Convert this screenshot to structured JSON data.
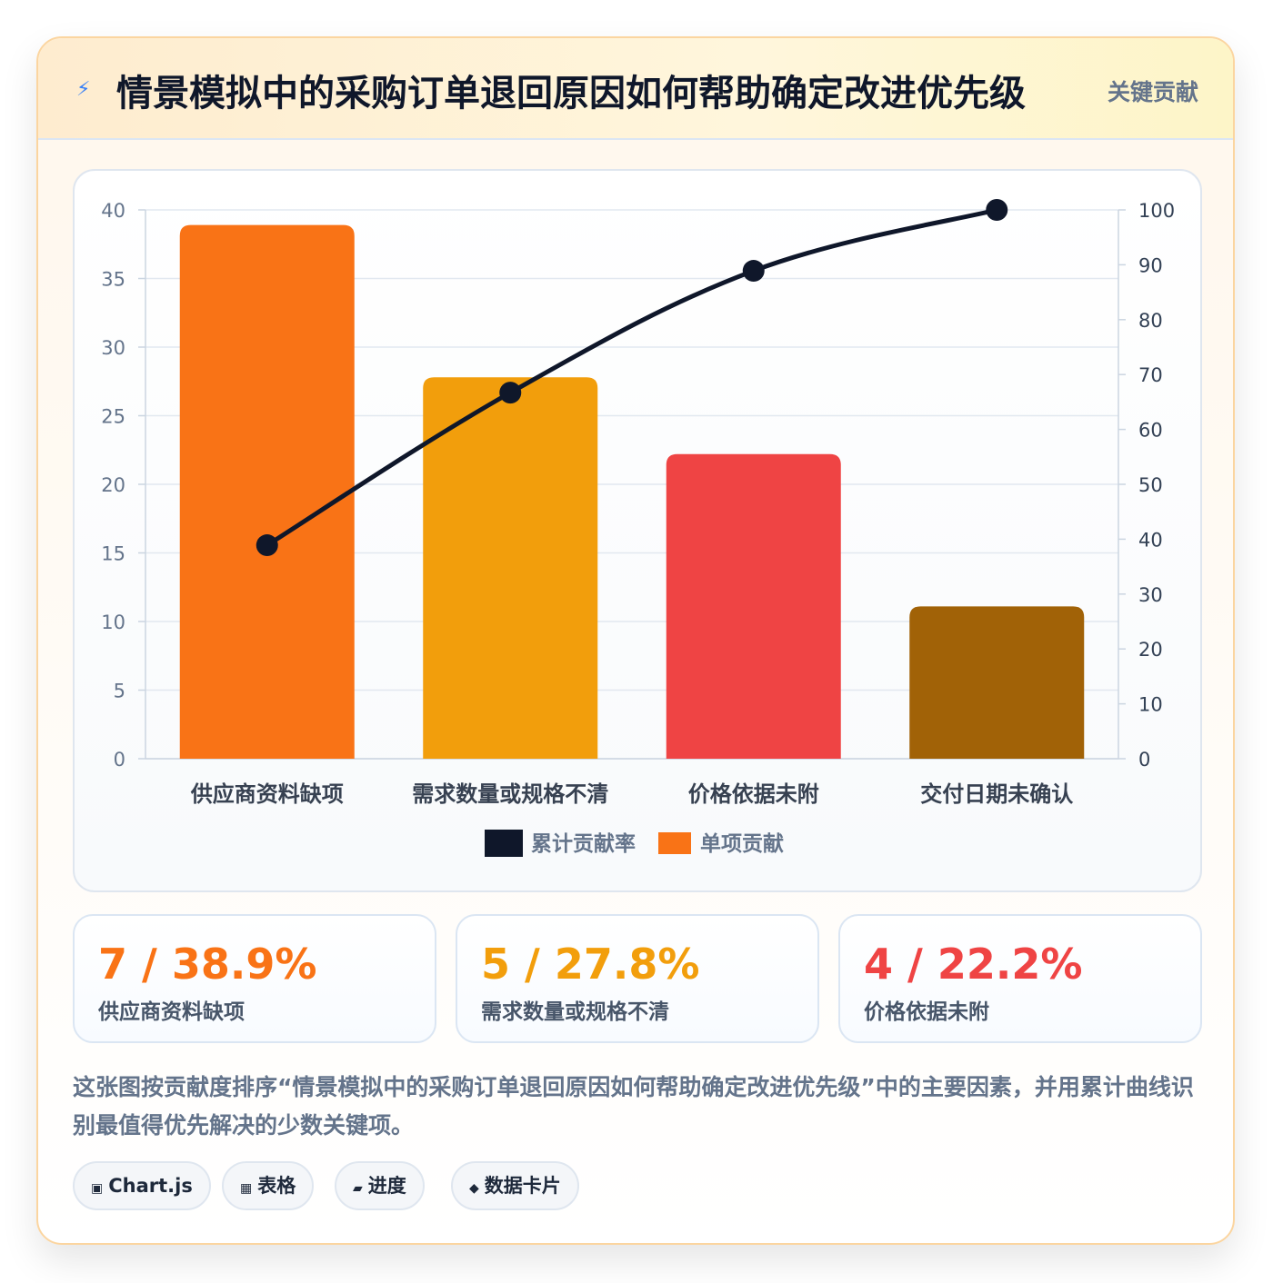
{
  "header": {
    "title": "情景模拟中的采购订单退回原因如何帮助确定改进优先级",
    "badge": "关键贡献",
    "icon": "lightning-icon"
  },
  "chart_data": {
    "type": "bar",
    "categories": [
      "供应商资料缺项",
      "需求数量或规格不清",
      "价格依据未附",
      "交付日期未确认"
    ],
    "series": [
      {
        "name": "单项贡献",
        "kind": "bar",
        "axis": "left",
        "values": [
          38.9,
          27.8,
          22.2,
          11.1
        ],
        "colors": [
          "#f97316",
          "#f29e0c",
          "#ef4444",
          "#a16207"
        ]
      },
      {
        "name": "累计贡献率",
        "kind": "line",
        "axis": "right",
        "values": [
          38.9,
          66.7,
          88.9,
          100
        ],
        "color": "#0f172a"
      }
    ],
    "left_axis": {
      "min": 0,
      "max": 40,
      "ticks": [
        0,
        5,
        10,
        15,
        20,
        25,
        30,
        35,
        40
      ]
    },
    "right_axis": {
      "min": 0,
      "max": 100,
      "ticks": [
        0,
        10,
        20,
        30,
        40,
        50,
        60,
        70,
        80,
        90,
        100
      ]
    },
    "legend": [
      {
        "label": "累计贡献率",
        "color": "#0f172a"
      },
      {
        "label": "单项贡献",
        "color": "#f97316"
      }
    ],
    "legend_position": "bottom",
    "grid": true
  },
  "stats": [
    {
      "value": "7 / 38.9%",
      "label": "供应商资料缺项",
      "color": "#f97316"
    },
    {
      "value": "5 / 27.8%",
      "label": "需求数量或规格不清",
      "color": "#f29e0c"
    },
    {
      "value": "4 / 22.2%",
      "label": "价格依据未附",
      "color": "#ef4444"
    }
  ],
  "description": "这张图按贡献度排序“情景模拟中的采购订单退回原因如何帮助确定改进优先级”中的主要因素，并用累计曲线识别最值得优先解决的少数关键项。",
  "tags": [
    {
      "icon": "▣",
      "label": "Chart.js"
    },
    {
      "icon": "▦",
      "label": "表格"
    },
    {
      "icon": "▰",
      "label": "进度"
    },
    {
      "icon": "◆",
      "label": "数据卡片"
    }
  ]
}
